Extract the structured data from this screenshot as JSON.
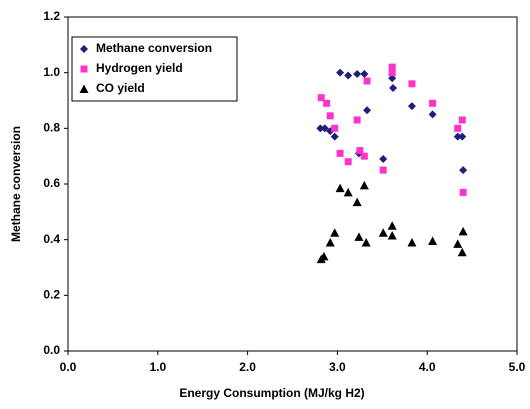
{
  "chart_data": {
    "type": "scatter",
    "xlabel": "Energy Consumption (MJ/kg H2)",
    "ylabel": "Methane conversion",
    "xlim": [
      0,
      5
    ],
    "ylim": [
      0,
      1.2
    ],
    "xticks": [
      {
        "value": 0,
        "label": "0.0"
      },
      {
        "value": 1,
        "label": "1.0"
      },
      {
        "value": 2,
        "label": "2.0"
      },
      {
        "value": 3,
        "label": "3.0"
      },
      {
        "value": 4,
        "label": "4.0"
      },
      {
        "value": 5,
        "label": "5.0"
      }
    ],
    "yticks": [
      {
        "value": 0,
        "label": "0.0"
      },
      0.2,
      0.4,
      0.6,
      0.8,
      {
        "value": 1,
        "label": "1.0"
      },
      1.2
    ],
    "legend": "upper left",
    "series": [
      {
        "name": "Methane conversion",
        "color": "#1f1f7a",
        "marker": "diamond",
        "x": [
          2.81,
          2.86,
          2.92,
          2.97,
          3.03,
          3.12,
          3.22,
          3.3,
          3.24,
          3.33,
          3.51,
          3.61,
          3.62,
          3.83,
          4.06,
          4.34,
          4.39,
          4.4
        ],
        "values": [
          0.8,
          0.8,
          0.79,
          0.77,
          1.0,
          0.99,
          0.995,
          0.995,
          0.71,
          0.865,
          0.69,
          0.98,
          0.945,
          0.88,
          0.85,
          0.77,
          0.77,
          0.65
        ]
      },
      {
        "name": "Hydrogen yield",
        "color": "#ff33cc",
        "marker": "square",
        "x": [
          2.82,
          2.88,
          2.92,
          2.97,
          3.03,
          3.12,
          3.22,
          3.25,
          3.3,
          3.33,
          3.51,
          3.61,
          3.61,
          3.83,
          4.06,
          4.34,
          4.39,
          4.4
        ],
        "values": [
          0.91,
          0.89,
          0.845,
          0.8,
          0.71,
          0.68,
          0.83,
          0.72,
          0.7,
          0.97,
          0.65,
          1.02,
          1.0,
          0.96,
          0.89,
          0.8,
          0.83,
          0.57
        ]
      },
      {
        "name": "CO yield",
        "color": "#000000",
        "marker": "triangle",
        "x": [
          2.82,
          2.85,
          2.92,
          2.97,
          3.03,
          3.12,
          3.22,
          3.24,
          3.3,
          3.32,
          3.51,
          3.61,
          3.61,
          3.83,
          4.06,
          4.34,
          4.39,
          4.4
        ],
        "values": [
          0.33,
          0.34,
          0.39,
          0.425,
          0.585,
          0.57,
          0.535,
          0.41,
          0.595,
          0.39,
          0.425,
          0.45,
          0.415,
          0.39,
          0.395,
          0.385,
          0.355,
          0.43
        ]
      }
    ]
  }
}
